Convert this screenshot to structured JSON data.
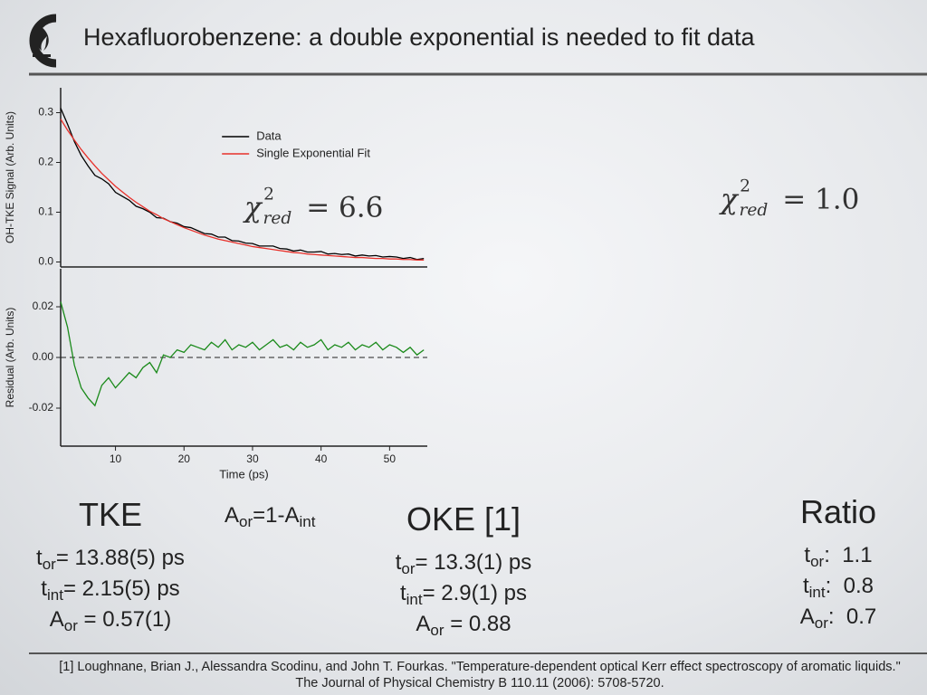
{
  "header": {
    "title": "Hexafluorobenzene: a double exponential is needed to fit data"
  },
  "chart_data": [
    {
      "type": "line",
      "y_label": "OH-TKE Signal (Arb. Units)",
      "xlim": [
        2,
        55.5
      ],
      "ylim": [
        -0.01,
        0.35
      ],
      "yticks": [
        {
          "value": 0,
          "label": "0.0"
        },
        0.1,
        0.2,
        0.3
      ],
      "legend": "upper center",
      "x": [
        2,
        3,
        4,
        5,
        6,
        7,
        8,
        9,
        10,
        11,
        12,
        13,
        14,
        15,
        16,
        17,
        18,
        19,
        20,
        21,
        22,
        23,
        24,
        25,
        26,
        27,
        28,
        29,
        30,
        31,
        32,
        33,
        34,
        35,
        36,
        37,
        38,
        39,
        40,
        41,
        42,
        43,
        44,
        45,
        46,
        47,
        48,
        49,
        50,
        51,
        52,
        53,
        54,
        55
      ],
      "series": [
        {
          "name": "Data",
          "color": "#000000",
          "values": [
            0.309,
            0.277,
            0.242,
            0.214,
            0.193,
            0.174,
            0.167,
            0.157,
            0.14,
            0.132,
            0.124,
            0.112,
            0.107,
            0.1,
            0.089,
            0.088,
            0.081,
            0.078,
            0.071,
            0.069,
            0.063,
            0.057,
            0.056,
            0.05,
            0.05,
            0.043,
            0.042,
            0.038,
            0.037,
            0.032,
            0.032,
            0.032,
            0.027,
            0.026,
            0.022,
            0.024,
            0.02,
            0.02,
            0.021,
            0.016,
            0.017,
            0.015,
            0.016,
            0.012,
            0.014,
            0.012,
            0.013,
            0.01,
            0.011,
            0.01,
            0.007,
            0.009,
            0.005,
            0.007
          ]
        },
        {
          "name": "Single Exponential Fit",
          "color": "#e8302a",
          "values": [
            0.287,
            0.265,
            0.245,
            0.226,
            0.209,
            0.193,
            0.178,
            0.165,
            0.152,
            0.141,
            0.13,
            0.12,
            0.111,
            0.102,
            0.095,
            0.087,
            0.081,
            0.075,
            0.069,
            0.064,
            0.059,
            0.054,
            0.05,
            0.046,
            0.043,
            0.04,
            0.037,
            0.034,
            0.031,
            0.029,
            0.027,
            0.025,
            0.023,
            0.021,
            0.019,
            0.018,
            0.016,
            0.015,
            0.014,
            0.013,
            0.012,
            0.011,
            0.01,
            0.009,
            0.009,
            0.008,
            0.007,
            0.007,
            0.006,
            0.006,
            0.005,
            0.005,
            0.004,
            0.004
          ]
        }
      ],
      "annotation": {
        "symbol": "χ",
        "sup": "2",
        "sub": "red",
        "text": "= 6.6"
      }
    },
    {
      "type": "line",
      "y_label": "Residual (Arb. Units)",
      "x_label": "Time (ps)",
      "xlim": [
        2,
        55.5
      ],
      "ylim": [
        -0.035,
        0.035
      ],
      "xticks": [
        10,
        20,
        30,
        40,
        50
      ],
      "yticks": [
        -0.02,
        {
          "value": 0,
          "label": "0.00"
        },
        0.02
      ],
      "reference_line": 0,
      "x": [
        2,
        3,
        4,
        5,
        6,
        7,
        8,
        9,
        10,
        11,
        12,
        13,
        14,
        15,
        16,
        17,
        18,
        19,
        20,
        21,
        22,
        23,
        24,
        25,
        26,
        27,
        28,
        29,
        30,
        31,
        32,
        33,
        34,
        35,
        36,
        37,
        38,
        39,
        40,
        41,
        42,
        43,
        44,
        45,
        46,
        47,
        48,
        49,
        50,
        51,
        52,
        53,
        54,
        55
      ],
      "series": [
        {
          "color": "#1a8a1a",
          "values": [
            0.022,
            0.012,
            -0.003,
            -0.012,
            -0.016,
            -0.019,
            -0.011,
            -0.008,
            -0.012,
            -0.009,
            -0.006,
            -0.008,
            -0.004,
            -0.002,
            -0.006,
            0.001,
            0.0,
            0.003,
            0.002,
            0.005,
            0.004,
            0.003,
            0.006,
            0.004,
            0.007,
            0.003,
            0.005,
            0.004,
            0.006,
            0.003,
            0.005,
            0.007,
            0.004,
            0.005,
            0.003,
            0.006,
            0.004,
            0.005,
            0.007,
            0.003,
            0.005,
            0.004,
            0.006,
            0.003,
            0.005,
            0.004,
            0.006,
            0.003,
            0.005,
            0.004,
            0.002,
            0.004,
            0.001,
            0.003
          ]
        }
      ]
    }
  ],
  "fit_note": {
    "symbol": "χ",
    "sup": "2",
    "sub": "red",
    "text": "= 1.0"
  },
  "relation": [
    "A",
    "or",
    "=1-A",
    "int"
  ],
  "columns": [
    {
      "heading": "TKE",
      "lines": [
        [
          "t",
          "or",
          "= 13.88(5) ps"
        ],
        [
          "t",
          "int",
          "= 2.15(5) ps"
        ],
        [
          "A",
          "or",
          " = 0.57(1)"
        ]
      ]
    },
    {
      "heading": "OKE [1]",
      "lines": [
        [
          "t",
          "or",
          "= 13.3(1) ps"
        ],
        [
          "t",
          "int",
          "= 2.9(1) ps"
        ],
        [
          "A",
          "or",
          " = 0.88"
        ]
      ]
    },
    {
      "heading": "Ratio",
      "lines": [
        [
          "t",
          "or",
          ":  1.1"
        ],
        [
          "t",
          "int",
          ":  0.8"
        ],
        [
          "A",
          "or",
          ":  0.7"
        ]
      ]
    }
  ],
  "footnote": "[1] Loughnane, Brian J., Alessandra Scodinu, and John T. Fourkas. \"Temperature-dependent optical Kerr effect spectroscopy of aromatic liquids.\" The Journal of Physical Chemistry B 110.11 (2006): 5708-5720."
}
